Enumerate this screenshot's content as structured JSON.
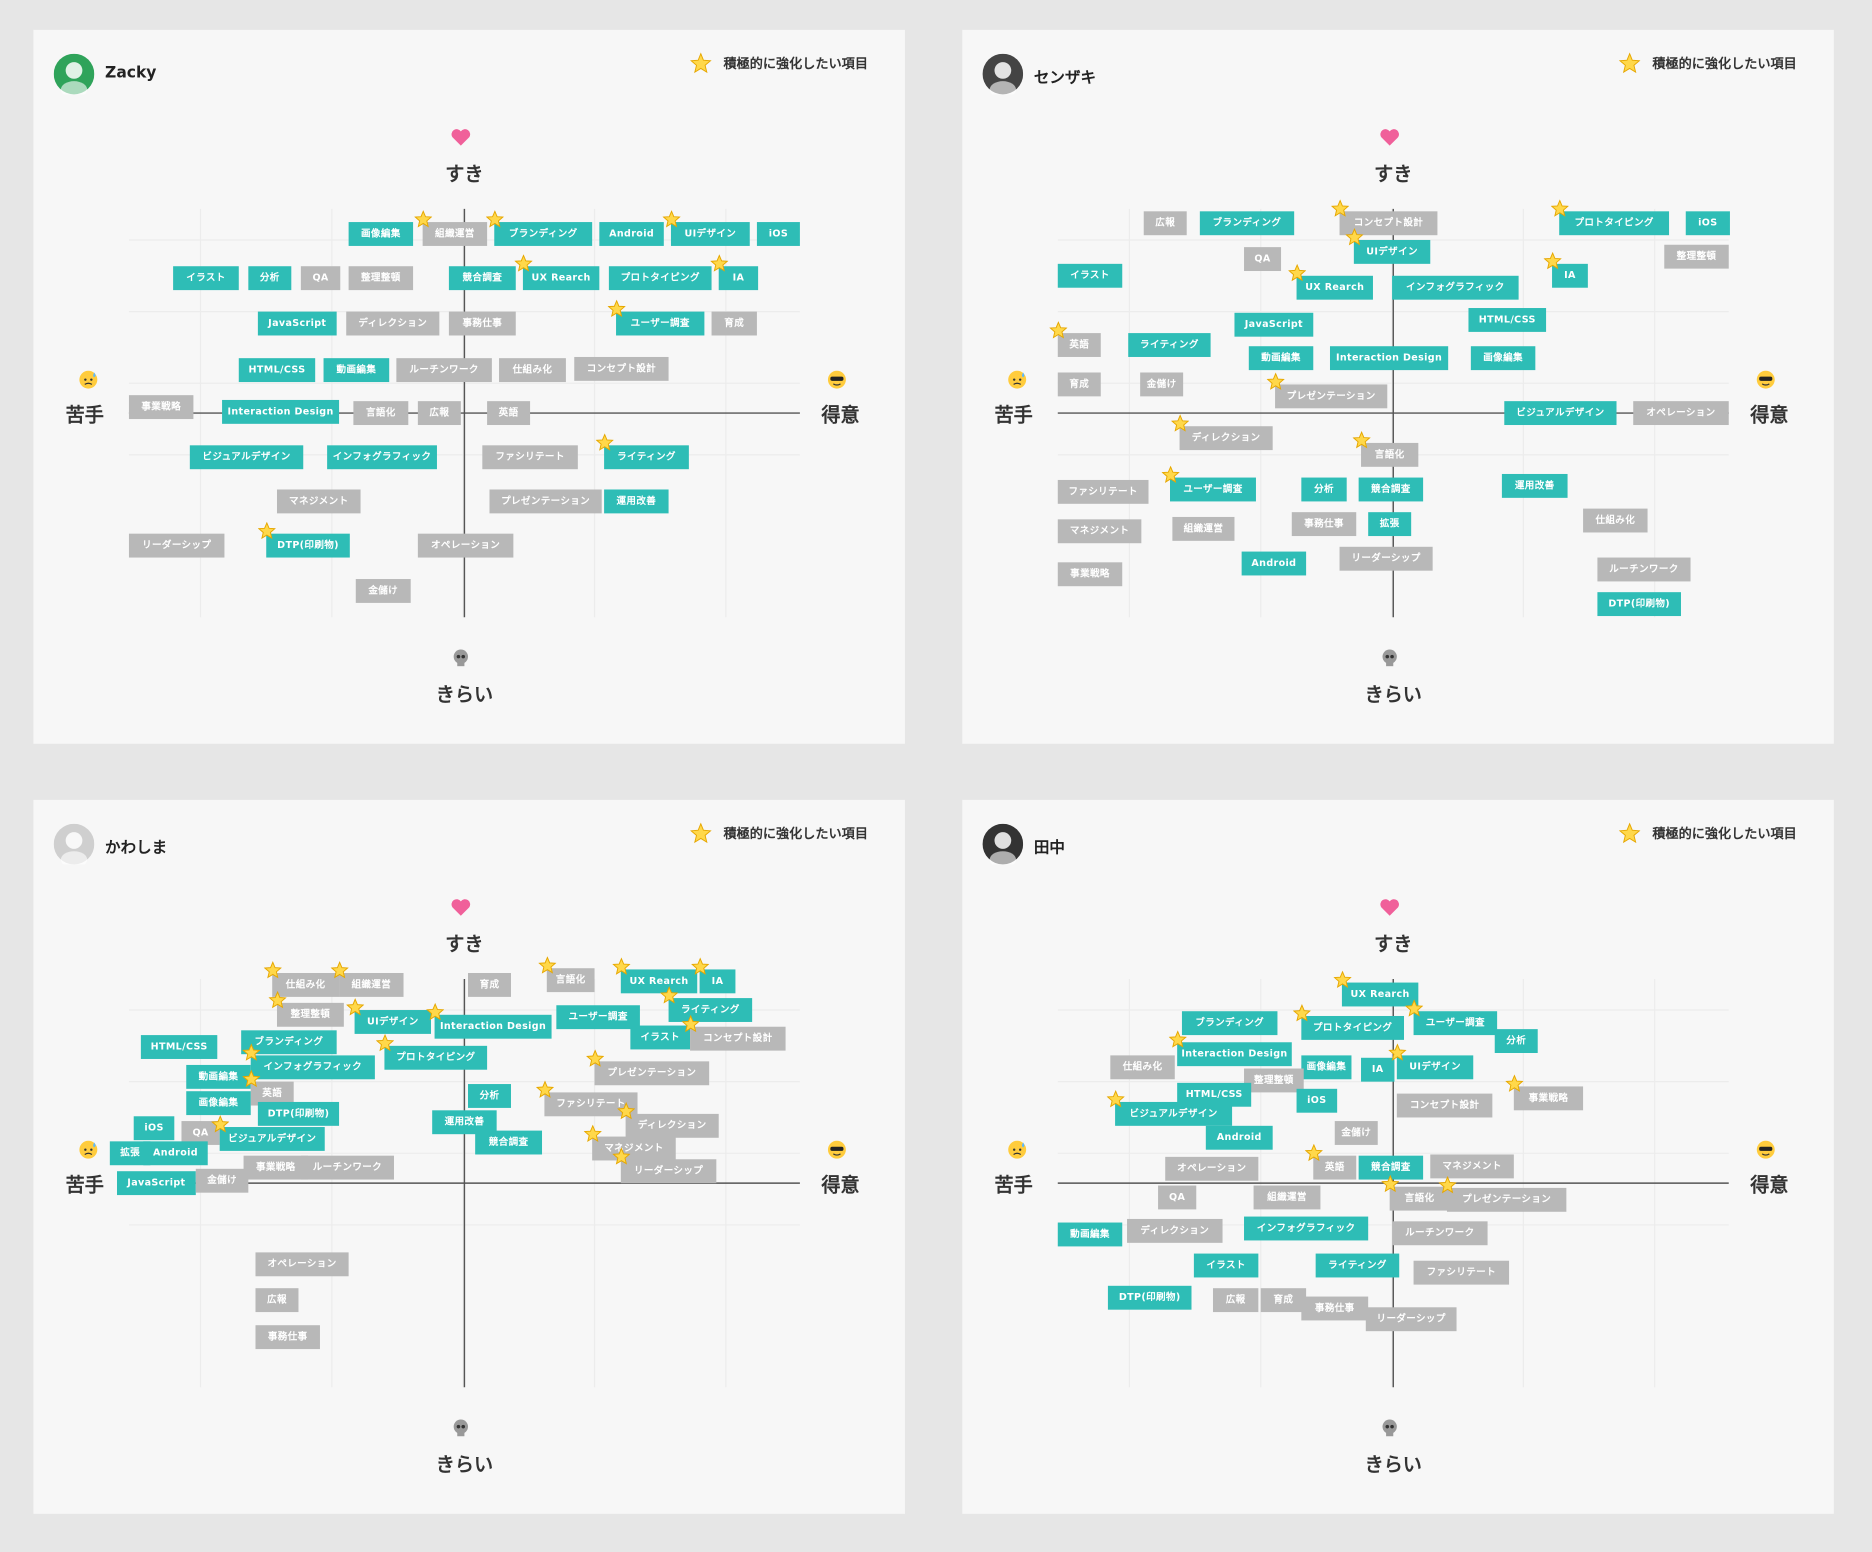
{
  "panels": [
    {
      "user": "Zacky",
      "legend": "積極的に強化したい項目",
      "axes": {
        "top": "すき",
        "bottom": "きらい",
        "left": "苦手",
        "right": "得意"
      },
      "tags": [
        {
          "label": "画像編集",
          "teal": true,
          "star": false
        },
        {
          "label": "組織運営",
          "teal": false,
          "star": true
        },
        {
          "label": "ブランディング",
          "teal": true,
          "star": true
        },
        {
          "label": "Android",
          "teal": true,
          "star": false
        },
        {
          "label": "UIデザイン",
          "teal": true,
          "star": true
        },
        {
          "label": "iOS",
          "teal": true,
          "star": false
        },
        {
          "label": "イラスト",
          "teal": true,
          "star": false
        },
        {
          "label": "分析",
          "teal": true,
          "star": false
        },
        {
          "label": "QA",
          "teal": false,
          "star": false
        },
        {
          "label": "整理整頓",
          "teal": false,
          "star": false
        },
        {
          "label": "競合調査",
          "teal": true,
          "star": false
        },
        {
          "label": "UX Rearch",
          "teal": true,
          "star": true
        },
        {
          "label": "プロトタイピング",
          "teal": true,
          "star": false
        },
        {
          "label": "IA",
          "teal": true,
          "star": true
        },
        {
          "label": "JavaScript",
          "teal": true,
          "star": false
        },
        {
          "label": "ディレクション",
          "teal": false,
          "star": false
        },
        {
          "label": "事務仕事",
          "teal": false,
          "star": false
        },
        {
          "label": "ユーザー調査",
          "teal": true,
          "star": true
        },
        {
          "label": "育成",
          "teal": false,
          "star": false
        },
        {
          "label": "HTML/CSS",
          "teal": true,
          "star": false
        },
        {
          "label": "動画編集",
          "teal": true,
          "star": false
        },
        {
          "label": "ルーチンワーク",
          "teal": false,
          "star": false
        },
        {
          "label": "仕組み化",
          "teal": false,
          "star": false
        },
        {
          "label": "コンセプト設計",
          "teal": false,
          "star": false
        },
        {
          "label": "事業戦略",
          "teal": false,
          "star": false
        },
        {
          "label": "Interaction Design",
          "teal": true,
          "star": false
        },
        {
          "label": "言語化",
          "teal": false,
          "star": false
        },
        {
          "label": "広報",
          "teal": false,
          "star": false
        },
        {
          "label": "英語",
          "teal": false,
          "star": false
        },
        {
          "label": "ビジュアルデザイン",
          "teal": true,
          "star": false
        },
        {
          "label": "インフォグラフィック",
          "teal": true,
          "star": false
        },
        {
          "label": "ファシリテート",
          "teal": false,
          "star": false
        },
        {
          "label": "ライティング",
          "teal": true,
          "star": true
        },
        {
          "label": "マネジメント",
          "teal": false,
          "star": false
        },
        {
          "label": "プレゼンテーション",
          "teal": false,
          "star": false
        },
        {
          "label": "運用改善",
          "teal": true,
          "star": false
        },
        {
          "label": "リーダーシップ",
          "teal": false,
          "star": false
        },
        {
          "label": "DTP(印刷物)",
          "teal": true,
          "star": true
        },
        {
          "label": "オペレーション",
          "teal": false,
          "star": false
        },
        {
          "label": "金儲け",
          "teal": false,
          "star": false
        }
      ]
    },
    {
      "user": "センザキ",
      "legend": "積極的に強化したい項目",
      "axes": {
        "top": "すき",
        "bottom": "きらい",
        "left": "苦手",
        "right": "得意"
      },
      "tags": [
        {
          "label": "広報",
          "teal": false,
          "star": false
        },
        {
          "label": "ブランディング",
          "teal": true,
          "star": false
        },
        {
          "label": "コンセプト設計",
          "teal": false,
          "star": true
        },
        {
          "label": "プロトタイピング",
          "teal": true,
          "star": true
        },
        {
          "label": "iOS",
          "teal": true,
          "star": false
        },
        {
          "label": "整理整頓",
          "teal": false,
          "star": false
        },
        {
          "label": "QA",
          "teal": false,
          "star": false
        },
        {
          "label": "UIデザイン",
          "teal": true,
          "star": true
        },
        {
          "label": "イラスト",
          "teal": true,
          "star": false
        },
        {
          "label": "UX Rearch",
          "teal": true,
          "star": true
        },
        {
          "label": "インフォグラフィック",
          "teal": true,
          "star": false
        },
        {
          "label": "IA",
          "teal": true,
          "star": true
        },
        {
          "label": "JavaScript",
          "teal": true,
          "star": false
        },
        {
          "label": "HTML/CSS",
          "teal": true,
          "star": false
        },
        {
          "label": "英語",
          "teal": false,
          "star": true
        },
        {
          "label": "ライティング",
          "teal": true,
          "star": false
        },
        {
          "label": "動画編集",
          "teal": true,
          "star": false
        },
        {
          "label": "Interaction Design",
          "teal": true,
          "star": false
        },
        {
          "label": "画像編集",
          "teal": true,
          "star": false
        },
        {
          "label": "育成",
          "teal": false,
          "star": false
        },
        {
          "label": "金儲け",
          "teal": false,
          "star": false
        },
        {
          "label": "プレゼンテーション",
          "teal": false,
          "star": true
        },
        {
          "label": "ビジュアルデザイン",
          "teal": true,
          "star": false
        },
        {
          "label": "オペレーション",
          "teal": false,
          "star": false
        },
        {
          "label": "ディレクション",
          "teal": false,
          "star": true
        },
        {
          "label": "言語化",
          "teal": false,
          "star": true
        },
        {
          "label": "ファシリテート",
          "teal": false,
          "star": false
        },
        {
          "label": "ユーザー調査",
          "teal": true,
          "star": true
        },
        {
          "label": "分析",
          "teal": true,
          "star": false
        },
        {
          "label": "競合調査",
          "teal": true,
          "star": false
        },
        {
          "label": "運用改善",
          "teal": true,
          "star": false
        },
        {
          "label": "仕組み化",
          "teal": false,
          "star": false
        },
        {
          "label": "マネジメント",
          "teal": false,
          "star": false
        },
        {
          "label": "組織運営",
          "teal": false,
          "star": false
        },
        {
          "label": "事務仕事",
          "teal": false,
          "star": false
        },
        {
          "label": "拡張",
          "teal": true,
          "star": false
        },
        {
          "label": "リーダーシップ",
          "teal": false,
          "star": false
        },
        {
          "label": "Android",
          "teal": true,
          "star": false
        },
        {
          "label": "ルーチンワーク",
          "teal": false,
          "star": false
        },
        {
          "label": "事業戦略",
          "teal": false,
          "star": false
        },
        {
          "label": "DTP(印刷物)",
          "teal": true,
          "star": false
        }
      ]
    },
    {
      "user": "かわしま",
      "legend": "積極的に強化したい項目",
      "axes": {
        "top": "すき",
        "bottom": "きらい",
        "left": "苦手",
        "right": "得意"
      },
      "tags": [
        {
          "label": "仕組み化",
          "teal": false,
          "star": true
        },
        {
          "label": "組織運営",
          "teal": false,
          "star": true
        },
        {
          "label": "育成",
          "teal": false,
          "star": false
        },
        {
          "label": "言語化",
          "teal": false,
          "star": true
        },
        {
          "label": "UX Rearch",
          "teal": true,
          "star": true
        },
        {
          "label": "IA",
          "teal": true,
          "star": true
        },
        {
          "label": "整理整頓",
          "teal": false,
          "star": true
        },
        {
          "label": "UIデザイン",
          "teal": true,
          "star": true
        },
        {
          "label": "Interaction Design",
          "teal": true,
          "star": true
        },
        {
          "label": "ユーザー調査",
          "teal": true,
          "star": false
        },
        {
          "label": "ライティング",
          "teal": true,
          "star": true
        },
        {
          "label": "HTML/CSS",
          "teal": true,
          "star": false
        },
        {
          "label": "ブランディング",
          "teal": true,
          "star": false
        },
        {
          "label": "イラスト",
          "teal": true,
          "star": false
        },
        {
          "label": "コンセプト設計",
          "teal": false,
          "star": true
        },
        {
          "label": "インフォグラフィック",
          "teal": true,
          "star": true
        },
        {
          "label": "プロトタイピング",
          "teal": true,
          "star": true
        },
        {
          "label": "動画編集",
          "teal": true,
          "star": false
        },
        {
          "label": "プレゼンテーション",
          "teal": false,
          "star": true
        },
        {
          "label": "英語",
          "teal": false,
          "star": true
        },
        {
          "label": "画像編集",
          "teal": true,
          "star": false
        },
        {
          "label": "分析",
          "teal": true,
          "star": false
        },
        {
          "label": "ファシリテート",
          "teal": false,
          "star": true
        },
        {
          "label": "DTP(印刷物)",
          "teal": true,
          "star": false
        },
        {
          "label": "運用改善",
          "teal": true,
          "star": false
        },
        {
          "label": "ディレクション",
          "teal": false,
          "star": true
        },
        {
          "label": "iOS",
          "teal": true,
          "star": false
        },
        {
          "label": "QA",
          "teal": false,
          "star": false
        },
        {
          "label": "ビジュアルデザイン",
          "teal": true,
          "star": true
        },
        {
          "label": "競合調査",
          "teal": true,
          "star": false
        },
        {
          "label": "拡張",
          "teal": true,
          "star": false
        },
        {
          "label": "Android",
          "teal": true,
          "star": false
        },
        {
          "label": "マネジメント",
          "teal": false,
          "star": true
        },
        {
          "label": "事業戦略",
          "teal": false,
          "star": false
        },
        {
          "label": "ルーチンワーク",
          "teal": false,
          "star": false
        },
        {
          "label": "リーダーシップ",
          "teal": false,
          "star": true
        },
        {
          "label": "JavaScript",
          "teal": true,
          "star": false
        },
        {
          "label": "金儲け",
          "teal": false,
          "star": false
        },
        {
          "label": "オペレーション",
          "teal": false,
          "star": false
        },
        {
          "label": "広報",
          "teal": false,
          "star": false
        },
        {
          "label": "事務仕事",
          "teal": false,
          "star": false
        }
      ]
    },
    {
      "user": "田中",
      "legend": "積極的に強化したい項目",
      "axes": {
        "top": "すき",
        "bottom": "きらい",
        "left": "苦手",
        "right": "得意"
      },
      "tags": [
        {
          "label": "UX Rearch",
          "teal": true,
          "star": true
        },
        {
          "label": "ブランディング",
          "teal": true,
          "star": false
        },
        {
          "label": "プロトタイピング",
          "teal": true,
          "star": true
        },
        {
          "label": "ユーザー調査",
          "teal": true,
          "star": true
        },
        {
          "label": "分析",
          "teal": true,
          "star": false
        },
        {
          "label": "Interaction Design",
          "teal": true,
          "star": true
        },
        {
          "label": "仕組み化",
          "teal": false,
          "star": false
        },
        {
          "label": "画像編集",
          "teal": true,
          "star": false
        },
        {
          "label": "IA",
          "teal": true,
          "star": false
        },
        {
          "label": "UIデザイン",
          "teal": true,
          "star": true
        },
        {
          "label": "整理整頓",
          "teal": false,
          "star": false
        },
        {
          "label": "事業戦略",
          "teal": false,
          "star": true
        },
        {
          "label": "HTML/CSS",
          "teal": true,
          "star": false
        },
        {
          "label": "iOS",
          "teal": true,
          "star": false
        },
        {
          "label": "コンセプト設計",
          "teal": false,
          "star": false
        },
        {
          "label": "ビジュアルデザイン",
          "teal": true,
          "star": true
        },
        {
          "label": "Android",
          "teal": true,
          "star": false
        },
        {
          "label": "金儲け",
          "teal": false,
          "star": false
        },
        {
          "label": "オペレーション",
          "teal": false,
          "star": false
        },
        {
          "label": "英語",
          "teal": false,
          "star": true
        },
        {
          "label": "競合調査",
          "teal": true,
          "star": false
        },
        {
          "label": "マネジメント",
          "teal": false,
          "star": false
        },
        {
          "label": "QA",
          "teal": false,
          "star": false
        },
        {
          "label": "組織運営",
          "teal": false,
          "star": false
        },
        {
          "label": "言語化",
          "teal": false,
          "star": true
        },
        {
          "label": "プレゼンテーション",
          "teal": false,
          "star": true
        },
        {
          "label": "動画編集",
          "teal": true,
          "star": false
        },
        {
          "label": "ディレクション",
          "teal": false,
          "star": false
        },
        {
          "label": "インフォグラフィック",
          "teal": true,
          "star": false
        },
        {
          "label": "ルーチンワーク",
          "teal": false,
          "star": false
        },
        {
          "label": "イラスト",
          "teal": true,
          "star": false
        },
        {
          "label": "ライティング",
          "teal": true,
          "star": false
        },
        {
          "label": "ファシリテート",
          "teal": false,
          "star": false
        },
        {
          "label": "DTP(印刷物)",
          "teal": true,
          "star": false
        },
        {
          "label": "広報",
          "teal": false,
          "star": false
        },
        {
          "label": "育成",
          "teal": false,
          "star": false
        },
        {
          "label": "事務仕事",
          "teal": false,
          "star": false
        },
        {
          "label": "リーダーシップ",
          "teal": false,
          "star": false
        }
      ]
    }
  ]
}
